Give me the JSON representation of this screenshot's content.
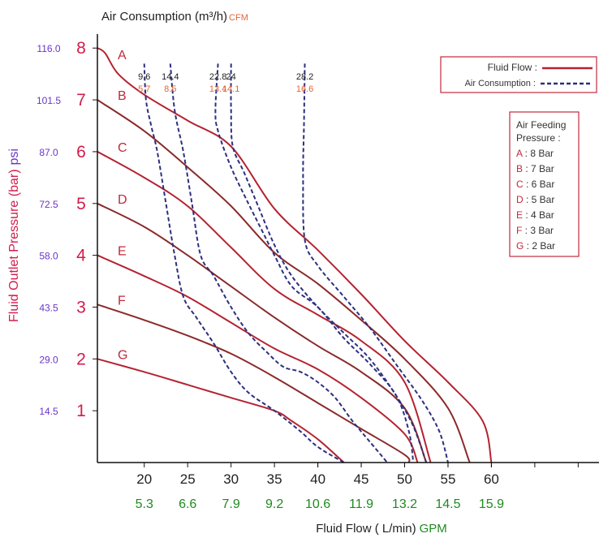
{
  "chart_data": {
    "type": "line",
    "top_title": "Air Consumption (m³/h)",
    "top_title_unit": "CFM",
    "xlabel": "Fluid Flow ( L/min)",
    "xlabel_unit": "GPM",
    "ylabel": "Fluid Outlet Pressure (bar)",
    "ylabel_unit": "psi",
    "xlim": [
      14.6,
      72.4
    ],
    "ylim": [
      0,
      8.27
    ],
    "x_ticks": [
      "20",
      "25",
      "30",
      "35",
      "40",
      "45",
      "50",
      "55",
      "60"
    ],
    "x_gpm_ticks": [
      "5.3",
      "6.6",
      "7.9",
      "9.2",
      "10.6",
      "11.9",
      "13.2",
      "14.5",
      "15.9"
    ],
    "y_ticks": [
      "1",
      "2",
      "3",
      "4",
      "5",
      "6",
      "7",
      "8"
    ],
    "y_psi_ticks": [
      "14.5",
      "29.0",
      "43.5",
      "58.0",
      "72.5",
      "87.0",
      "101.5",
      "116.0"
    ],
    "air_labels_m3h": [
      "9.6",
      "14.4",
      "22.8",
      "24",
      "28.2"
    ],
    "air_labels_cfm": [
      "5.7",
      "8.5",
      "13.4",
      "14.1",
      "16.6"
    ],
    "curve_letters": [
      "A",
      "B",
      "C",
      "D",
      "E",
      "F",
      "G"
    ],
    "legend": {
      "fluid_flow": "Fluid Flow :",
      "air_consumption": "Air Consumption :"
    },
    "feeding_box": {
      "title_line1": "Air Feeding",
      "title_line2": "Pressure :",
      "items": [
        {
          "letter": "A",
          "text": ": 8 Bar"
        },
        {
          "letter": "B",
          "text": ": 7 Bar"
        },
        {
          "letter": "C",
          "text": ": 6 Bar"
        },
        {
          "letter": "D",
          "text": ": 5 Bar"
        },
        {
          "letter": "E",
          "text": ": 4 Bar"
        },
        {
          "letter": "F",
          "text": ": 3 Bar"
        },
        {
          "letter": "G",
          "text": ": 2 Bar"
        }
      ]
    },
    "fluid_flow_series": [
      {
        "name": "A",
        "color": "#b52331",
        "points": [
          [
            14.6,
            8.0
          ],
          [
            15.5,
            7.9
          ],
          [
            17,
            7.5
          ],
          [
            20,
            7.1
          ],
          [
            25,
            6.6
          ],
          [
            30,
            6.1
          ],
          [
            35,
            4.9
          ],
          [
            40,
            4.1
          ],
          [
            45,
            3.25
          ],
          [
            50,
            2.35
          ],
          [
            55,
            1.55
          ],
          [
            59,
            0.8
          ],
          [
            60,
            0.0
          ]
        ]
      },
      {
        "name": "B",
        "color": "#8b2a2a",
        "points": [
          [
            14.6,
            7.0
          ],
          [
            20,
            6.4
          ],
          [
            25,
            5.7
          ],
          [
            30,
            4.95
          ],
          [
            35,
            4.05
          ],
          [
            40,
            3.45
          ],
          [
            45,
            2.75
          ],
          [
            50,
            2.0
          ],
          [
            55,
            1.05
          ],
          [
            57.5,
            0.0
          ]
        ]
      },
      {
        "name": "C",
        "color": "#b52331",
        "points": [
          [
            14.6,
            6.0
          ],
          [
            20,
            5.5
          ],
          [
            25,
            4.95
          ],
          [
            30,
            4.15
          ],
          [
            35,
            3.35
          ],
          [
            40,
            2.85
          ],
          [
            45,
            2.35
          ],
          [
            50,
            1.55
          ],
          [
            53,
            0.0
          ]
        ]
      },
      {
        "name": "D",
        "color": "#8b2a2a",
        "points": [
          [
            14.6,
            5.0
          ],
          [
            20,
            4.55
          ],
          [
            25,
            4.0
          ],
          [
            30,
            3.4
          ],
          [
            35,
            2.8
          ],
          [
            40,
            2.25
          ],
          [
            45,
            1.75
          ],
          [
            50,
            1.05
          ],
          [
            52.5,
            0.0
          ]
        ]
      },
      {
        "name": "E",
        "color": "#b52331",
        "points": [
          [
            14.6,
            4.0
          ],
          [
            20,
            3.6
          ],
          [
            25,
            3.2
          ],
          [
            30,
            2.7
          ],
          [
            35,
            2.2
          ],
          [
            40,
            1.8
          ],
          [
            45,
            1.25
          ],
          [
            50,
            0.55
          ],
          [
            51.5,
            0.0
          ]
        ]
      },
      {
        "name": "F",
        "color": "#8b2a2a",
        "points": [
          [
            14.6,
            3.05
          ],
          [
            20,
            2.75
          ],
          [
            25,
            2.45
          ],
          [
            30,
            2.1
          ],
          [
            35,
            1.65
          ],
          [
            40,
            1.15
          ],
          [
            45,
            0.65
          ],
          [
            50,
            0.15
          ],
          [
            50.5,
            0.0
          ]
        ]
      },
      {
        "name": "G",
        "color": "#b52331",
        "points": [
          [
            14.6,
            2.0
          ],
          [
            20,
            1.75
          ],
          [
            25,
            1.5
          ],
          [
            30,
            1.25
          ],
          [
            35,
            1.0
          ],
          [
            37,
            0.8
          ],
          [
            40,
            0.45
          ],
          [
            43,
            0.0
          ]
        ]
      }
    ],
    "air_consumption_series": [
      {
        "name": "9.6",
        "color": "#2d2f7e",
        "points": [
          [
            20,
            7.7
          ],
          [
            20.2,
            7.0
          ],
          [
            20.8,
            6.5
          ],
          [
            21.5,
            6.0
          ],
          [
            22.5,
            5.0
          ],
          [
            23.5,
            4.0
          ],
          [
            24.5,
            3.2
          ],
          [
            26,
            2.8
          ],
          [
            28,
            2.3
          ],
          [
            30,
            1.75
          ],
          [
            32,
            1.35
          ],
          [
            35,
            1.0
          ],
          [
            38,
            0.6
          ],
          [
            40,
            0.3
          ],
          [
            43,
            0.0
          ]
        ]
      },
      {
        "name": "14.4",
        "color": "#2d2f7e",
        "points": [
          [
            23,
            7.7
          ],
          [
            23.5,
            6.8
          ],
          [
            24.5,
            6.0
          ],
          [
            25.5,
            5.0
          ],
          [
            26.5,
            4.0
          ],
          [
            28,
            3.6
          ],
          [
            30,
            3.0
          ],
          [
            32,
            2.5
          ],
          [
            34,
            2.15
          ],
          [
            36,
            1.85
          ],
          [
            38,
            1.75
          ],
          [
            40,
            1.55
          ],
          [
            42,
            1.25
          ],
          [
            44,
            0.8
          ],
          [
            46,
            0.4
          ],
          [
            48,
            0.0
          ]
        ]
      },
      {
        "name": "22.8",
        "color": "#2d2f7e",
        "points": [
          [
            28.5,
            7.7
          ],
          [
            28.2,
            6.8
          ],
          [
            28.5,
            6.4
          ],
          [
            30,
            5.7
          ],
          [
            32,
            5.0
          ],
          [
            33.5,
            4.5
          ],
          [
            35,
            4.0
          ],
          [
            37,
            3.4
          ],
          [
            40,
            3.0
          ],
          [
            43,
            2.4
          ],
          [
            46,
            1.9
          ],
          [
            49,
            1.3
          ],
          [
            50.5,
            0.6
          ],
          [
            51,
            0.0
          ]
        ]
      },
      {
        "name": "24",
        "color": "#2d2f7e",
        "points": [
          [
            30,
            7.7
          ],
          [
            30,
            6.8
          ],
          [
            30.2,
            6.1
          ],
          [
            31.5,
            5.6
          ],
          [
            33,
            5.0
          ],
          [
            35,
            4.2
          ],
          [
            37,
            3.6
          ],
          [
            40,
            3.0
          ],
          [
            43,
            2.5
          ],
          [
            46,
            2.0
          ],
          [
            49,
            1.3
          ],
          [
            51,
            0.7
          ],
          [
            52.5,
            0.0
          ]
        ]
      },
      {
        "name": "28.2",
        "color": "#2d2f7e",
        "points": [
          [
            38.5,
            7.7
          ],
          [
            38.4,
            6.5
          ],
          [
            38.3,
            5.5
          ],
          [
            38.5,
            4.3
          ],
          [
            40,
            3.8
          ],
          [
            43,
            3.2
          ],
          [
            46,
            2.6
          ],
          [
            49,
            1.9
          ],
          [
            52,
            1.2
          ],
          [
            54,
            0.6
          ],
          [
            55,
            0.0
          ]
        ]
      }
    ]
  }
}
